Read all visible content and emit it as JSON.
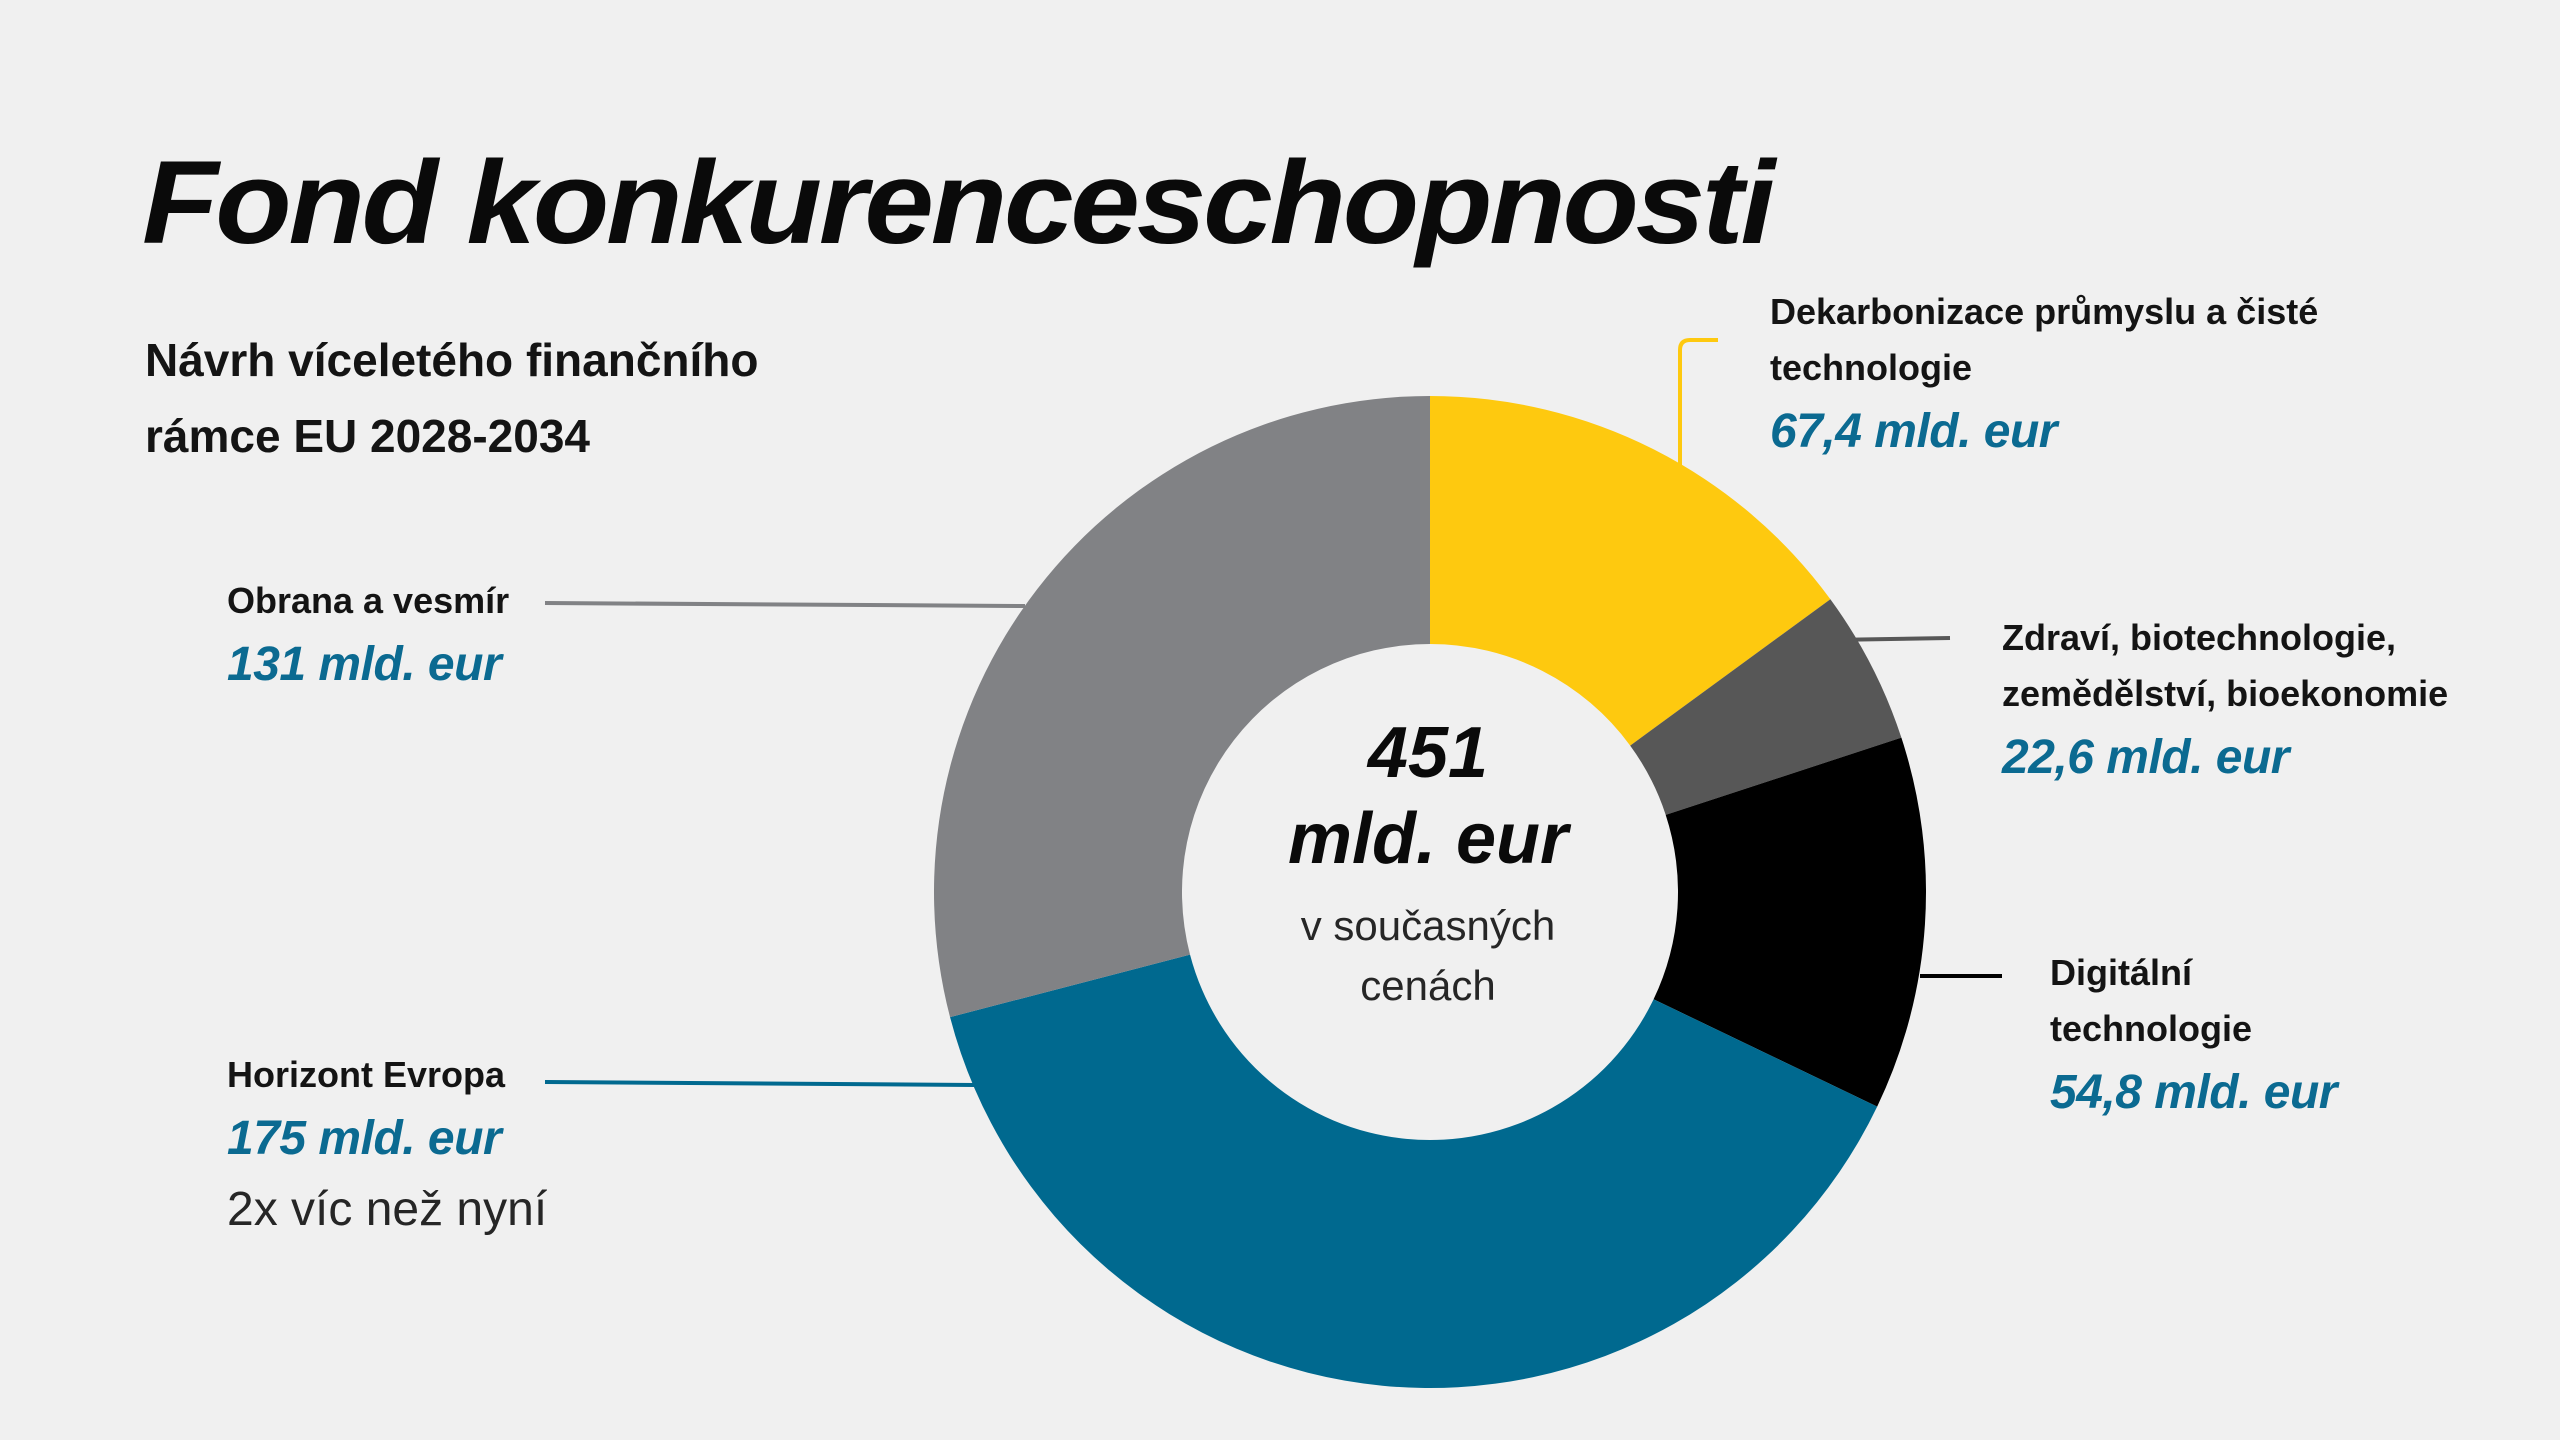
{
  "title": "Fond konkurenceschopnosti",
  "subtitle_line1": "Návrh víceletého finančního",
  "subtitle_line2": "rámce EU 2028-2034",
  "center": {
    "value_line1": "451",
    "value_line2": "mld. eur",
    "note_line1": "v současných",
    "note_line2": "cenách"
  },
  "chart_data": {
    "type": "pie",
    "variant": "donut",
    "unit": "mld. eur",
    "total": 451,
    "slices": [
      {
        "label_lines": [
          "Dekarbonizace průmyslu a čisté",
          "technologie"
        ],
        "value": 67.4,
        "value_label": "67,4 mld. eur",
        "color": "#fec90f"
      },
      {
        "label_lines": [
          "Zdraví, biotechnologie,",
          "zemědělství, bioekonomie"
        ],
        "value": 22.6,
        "value_label": "22,6 mld. eur",
        "color": "#575757"
      },
      {
        "label_lines": [
          "Digitální",
          "technologie"
        ],
        "value": 54.8,
        "value_label": "54,8 mld. eur",
        "color": "#000000"
      },
      {
        "label_lines": [
          "Horizont Evropa"
        ],
        "value": 175,
        "value_label": "175 mld. eur",
        "note": "2x víc než nyní",
        "color": "#00698f"
      },
      {
        "label_lines": [
          "Obrana a vesmír"
        ],
        "value": 131,
        "value_label": "131 mld. eur",
        "color": "#818285"
      }
    ]
  }
}
